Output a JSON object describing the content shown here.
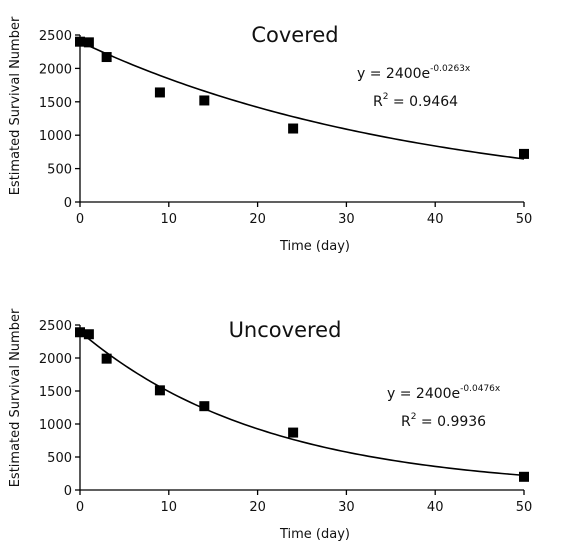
{
  "chart_data": [
    {
      "type": "scatter",
      "title": "Covered",
      "xlabel": "Time (day)",
      "ylabel": "Estimated Survival Number",
      "xlim": [
        0,
        50
      ],
      "ylim": [
        0,
        2500
      ],
      "xticks": [
        "0",
        "10",
        "20",
        "30",
        "40",
        "50"
      ],
      "yticks": [
        "0",
        "500",
        "1000",
        "1500",
        "2000",
        "2500"
      ],
      "grid": false,
      "legend": "none",
      "points": {
        "x": [
          0,
          1,
          3,
          9,
          14,
          24,
          50
        ],
        "y": [
          2400,
          2390,
          2170,
          1640,
          1520,
          1100,
          720
        ]
      },
      "trendline": {
        "type": "exponential",
        "a": 2400,
        "b": -0.0263
      },
      "equation": {
        "prefix": "y = 2400e",
        "exponent": "-0.0263x"
      },
      "r_squared": {
        "prefix": "R",
        "superscript": "2",
        "value": " = 0.9464"
      }
    },
    {
      "type": "scatter",
      "title": "Uncovered",
      "xlabel": "Time (day)",
      "ylabel": "Estimated Survival Number",
      "xlim": [
        0,
        50
      ],
      "ylim": [
        0,
        2500
      ],
      "xticks": [
        "0",
        "10",
        "20",
        "30",
        "40",
        "50"
      ],
      "yticks": [
        "0",
        "500",
        "1000",
        "1500",
        "2000",
        "2500"
      ],
      "grid": false,
      "legend": "none",
      "points": {
        "x": [
          0,
          1,
          3,
          9,
          14,
          24,
          50
        ],
        "y": [
          2390,
          2360,
          1990,
          1510,
          1270,
          870,
          200
        ]
      },
      "trendline": {
        "type": "exponential",
        "a": 2400,
        "b": -0.0476
      },
      "equation": {
        "prefix": "y = 2400e",
        "exponent": "-0.0476x"
      },
      "r_squared": {
        "prefix": "R",
        "superscript": "2",
        "value": " = 0.9936"
      }
    }
  ]
}
